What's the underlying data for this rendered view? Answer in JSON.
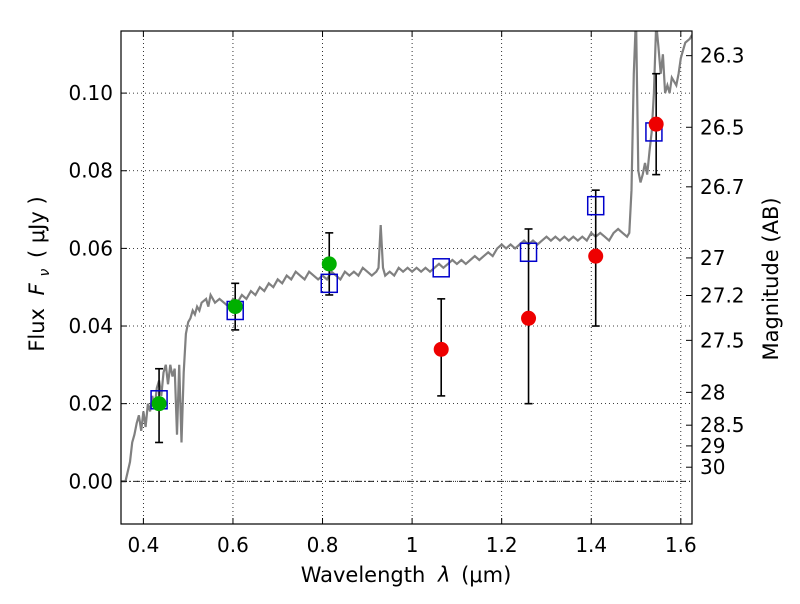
{
  "chart_data": {
    "type": "scatter",
    "xlabel_text": "Wavelength",
    "xlabel_symbol": "λ",
    "xlabel_unit": "(μm)",
    "ylabel_text": "Flux",
    "ylabel_symbol": "F",
    "ylabel_sub": "ν",
    "ylabel_unit": "( μJy )",
    "ylabel_right": "Magnitude (AB)",
    "xlim": [
      0.35,
      1.625
    ],
    "ylim": [
      -0.011,
      0.116
    ],
    "grid": true,
    "x_ticks": [
      0.4,
      0.6,
      0.8,
      1.0,
      1.2,
      1.4,
      1.6
    ],
    "x_tick_labels": [
      "0.4",
      "0.6",
      "0.8",
      "1",
      "1.2",
      "1.4",
      "1.6"
    ],
    "y_ticks": [
      0.0,
      0.02,
      0.04,
      0.06,
      0.08,
      0.1
    ],
    "y_tick_labels": [
      "0.00",
      "0.02",
      "0.04",
      "0.06",
      "0.08",
      "0.10"
    ],
    "right_ticks": [
      {
        "label": "26.3",
        "mag": 26.3
      },
      {
        "label": "26.5",
        "mag": 26.5
      },
      {
        "label": "26.7",
        "mag": 26.7
      },
      {
        "label": "27",
        "mag": 27.0
      },
      {
        "label": "27.2",
        "mag": 27.2
      },
      {
        "label": "27.5",
        "mag": 27.5
      },
      {
        "label": "28",
        "mag": 28.0
      },
      {
        "label": "28.5",
        "mag": 28.5
      },
      {
        "label": "29",
        "mag": 29.0
      },
      {
        "label": "30",
        "mag": 30.0
      }
    ],
    "colors": {
      "template": "#808080",
      "model": "#0000cc",
      "detected": "#00b000",
      "measured": "#ee0000",
      "error": "#000000"
    },
    "series": [
      {
        "name": "template_spectrum",
        "style": "line",
        "points": [
          [
            0.35,
            0.0
          ],
          [
            0.36,
            0.0
          ],
          [
            0.37,
            0.005
          ],
          [
            0.375,
            0.01
          ],
          [
            0.38,
            0.012
          ],
          [
            0.385,
            0.015
          ],
          [
            0.39,
            0.017
          ],
          [
            0.395,
            0.013
          ],
          [
            0.4,
            0.018
          ],
          [
            0.405,
            0.014
          ],
          [
            0.41,
            0.02
          ],
          [
            0.415,
            0.018
          ],
          [
            0.42,
            0.022
          ],
          [
            0.425,
            0.019
          ],
          [
            0.43,
            0.024
          ],
          [
            0.435,
            0.026
          ],
          [
            0.44,
            0.022
          ],
          [
            0.445,
            0.028
          ],
          [
            0.45,
            0.03
          ],
          [
            0.455,
            0.025
          ],
          [
            0.46,
            0.03
          ],
          [
            0.465,
            0.027
          ],
          [
            0.47,
            0.029
          ],
          [
            0.475,
            0.012
          ],
          [
            0.48,
            0.03
          ],
          [
            0.485,
            0.01
          ],
          [
            0.49,
            0.028
          ],
          [
            0.495,
            0.038
          ],
          [
            0.5,
            0.041
          ],
          [
            0.505,
            0.042
          ],
          [
            0.51,
            0.044
          ],
          [
            0.515,
            0.043
          ],
          [
            0.52,
            0.045
          ],
          [
            0.525,
            0.044
          ],
          [
            0.53,
            0.046
          ],
          [
            0.54,
            0.047
          ],
          [
            0.545,
            0.045
          ],
          [
            0.55,
            0.048
          ],
          [
            0.56,
            0.046
          ],
          [
            0.57,
            0.047
          ],
          [
            0.58,
            0.046
          ],
          [
            0.59,
            0.045
          ],
          [
            0.6,
            0.047
          ],
          [
            0.61,
            0.046
          ],
          [
            0.62,
            0.048
          ],
          [
            0.63,
            0.047
          ],
          [
            0.64,
            0.049
          ],
          [
            0.65,
            0.048
          ],
          [
            0.66,
            0.05
          ],
          [
            0.67,
            0.049
          ],
          [
            0.68,
            0.051
          ],
          [
            0.69,
            0.05
          ],
          [
            0.7,
            0.052
          ],
          [
            0.71,
            0.051
          ],
          [
            0.72,
            0.053
          ],
          [
            0.73,
            0.052
          ],
          [
            0.74,
            0.054
          ],
          [
            0.75,
            0.053
          ],
          [
            0.76,
            0.052
          ],
          [
            0.77,
            0.054
          ],
          [
            0.78,
            0.053
          ],
          [
            0.79,
            0.052
          ],
          [
            0.8,
            0.053
          ],
          [
            0.81,
            0.052
          ],
          [
            0.82,
            0.054
          ],
          [
            0.83,
            0.053
          ],
          [
            0.84,
            0.052
          ],
          [
            0.85,
            0.054
          ],
          [
            0.86,
            0.053
          ],
          [
            0.87,
            0.054
          ],
          [
            0.88,
            0.053
          ],
          [
            0.89,
            0.055
          ],
          [
            0.9,
            0.054
          ],
          [
            0.91,
            0.053
          ],
          [
            0.92,
            0.054
          ],
          [
            0.925,
            0.055
          ],
          [
            0.93,
            0.066
          ],
          [
            0.935,
            0.055
          ],
          [
            0.94,
            0.053
          ],
          [
            0.95,
            0.054
          ],
          [
            0.96,
            0.053
          ],
          [
            0.97,
            0.055
          ],
          [
            0.98,
            0.054
          ],
          [
            0.99,
            0.055
          ],
          [
            1.0,
            0.054
          ],
          [
            1.01,
            0.055
          ],
          [
            1.02,
            0.054
          ],
          [
            1.03,
            0.055
          ],
          [
            1.04,
            0.054
          ],
          [
            1.05,
            0.055
          ],
          [
            1.06,
            0.056
          ],
          [
            1.07,
            0.055
          ],
          [
            1.08,
            0.056
          ],
          [
            1.09,
            0.057
          ],
          [
            1.1,
            0.056
          ],
          [
            1.11,
            0.057
          ],
          [
            1.12,
            0.056
          ],
          [
            1.13,
            0.057
          ],
          [
            1.14,
            0.058
          ],
          [
            1.15,
            0.057
          ],
          [
            1.16,
            0.058
          ],
          [
            1.17,
            0.059
          ],
          [
            1.18,
            0.058
          ],
          [
            1.19,
            0.06
          ],
          [
            1.2,
            0.061
          ],
          [
            1.21,
            0.06
          ],
          [
            1.22,
            0.061
          ],
          [
            1.23,
            0.06
          ],
          [
            1.24,
            0.061
          ],
          [
            1.25,
            0.062
          ],
          [
            1.26,
            0.061
          ],
          [
            1.27,
            0.062
          ],
          [
            1.28,
            0.061
          ],
          [
            1.29,
            0.062
          ],
          [
            1.3,
            0.063
          ],
          [
            1.31,
            0.062
          ],
          [
            1.32,
            0.063
          ],
          [
            1.33,
            0.062
          ],
          [
            1.34,
            0.063
          ],
          [
            1.35,
            0.062
          ],
          [
            1.36,
            0.063
          ],
          [
            1.37,
            0.062
          ],
          [
            1.38,
            0.063
          ],
          [
            1.39,
            0.062
          ],
          [
            1.4,
            0.064
          ],
          [
            1.41,
            0.063
          ],
          [
            1.42,
            0.064
          ],
          [
            1.43,
            0.063
          ],
          [
            1.44,
            0.062
          ],
          [
            1.45,
            0.064
          ],
          [
            1.46,
            0.065
          ],
          [
            1.47,
            0.064
          ],
          [
            1.48,
            0.063
          ],
          [
            1.485,
            0.064
          ],
          [
            1.49,
            0.075
          ],
          [
            1.495,
            0.105
          ],
          [
            1.5,
            0.12
          ],
          [
            1.505,
            0.08
          ],
          [
            1.51,
            0.077
          ],
          [
            1.515,
            0.079
          ],
          [
            1.52,
            0.082
          ],
          [
            1.525,
            0.079
          ],
          [
            1.53,
            0.085
          ],
          [
            1.535,
            0.09
          ],
          [
            1.54,
            0.1
          ],
          [
            1.545,
            0.118
          ],
          [
            1.55,
            0.112
          ],
          [
            1.555,
            0.105
          ],
          [
            1.56,
            0.11
          ],
          [
            1.565,
            0.1
          ],
          [
            1.57,
            0.102
          ],
          [
            1.575,
            0.1
          ],
          [
            1.58,
            0.104
          ],
          [
            1.59,
            0.102
          ],
          [
            1.595,
            0.105
          ],
          [
            1.6,
            0.109
          ],
          [
            1.605,
            0.111
          ],
          [
            1.61,
            0.113
          ],
          [
            1.62,
            0.114
          ],
          [
            1.625,
            0.115
          ]
        ]
      },
      {
        "name": "model_flux",
        "style": "open-square",
        "points": [
          [
            0.435,
            0.021
          ],
          [
            0.605,
            0.044
          ],
          [
            0.815,
            0.051
          ],
          [
            1.065,
            0.055
          ],
          [
            1.26,
            0.059
          ],
          [
            1.41,
            0.071
          ],
          [
            1.54,
            0.09
          ]
        ]
      },
      {
        "name": "detected_flux",
        "style": "filled-circle",
        "points": [
          {
            "x": 0.435,
            "y": 0.02,
            "ylo": 0.01,
            "yhi": 0.029
          },
          {
            "x": 0.605,
            "y": 0.045,
            "ylo": 0.039,
            "yhi": 0.051
          },
          {
            "x": 0.815,
            "y": 0.056,
            "ylo": 0.048,
            "yhi": 0.064
          }
        ]
      },
      {
        "name": "measured_flux",
        "style": "filled-circle",
        "points": [
          {
            "x": 1.065,
            "y": 0.034,
            "ylo": 0.022,
            "yhi": 0.047
          },
          {
            "x": 1.26,
            "y": 0.042,
            "ylo": 0.02,
            "yhi": 0.065
          },
          {
            "x": 1.41,
            "y": 0.058,
            "ylo": 0.04,
            "yhi": 0.075
          },
          {
            "x": 1.545,
            "y": 0.092,
            "ylo": 0.079,
            "yhi": 0.105
          }
        ]
      }
    ]
  }
}
